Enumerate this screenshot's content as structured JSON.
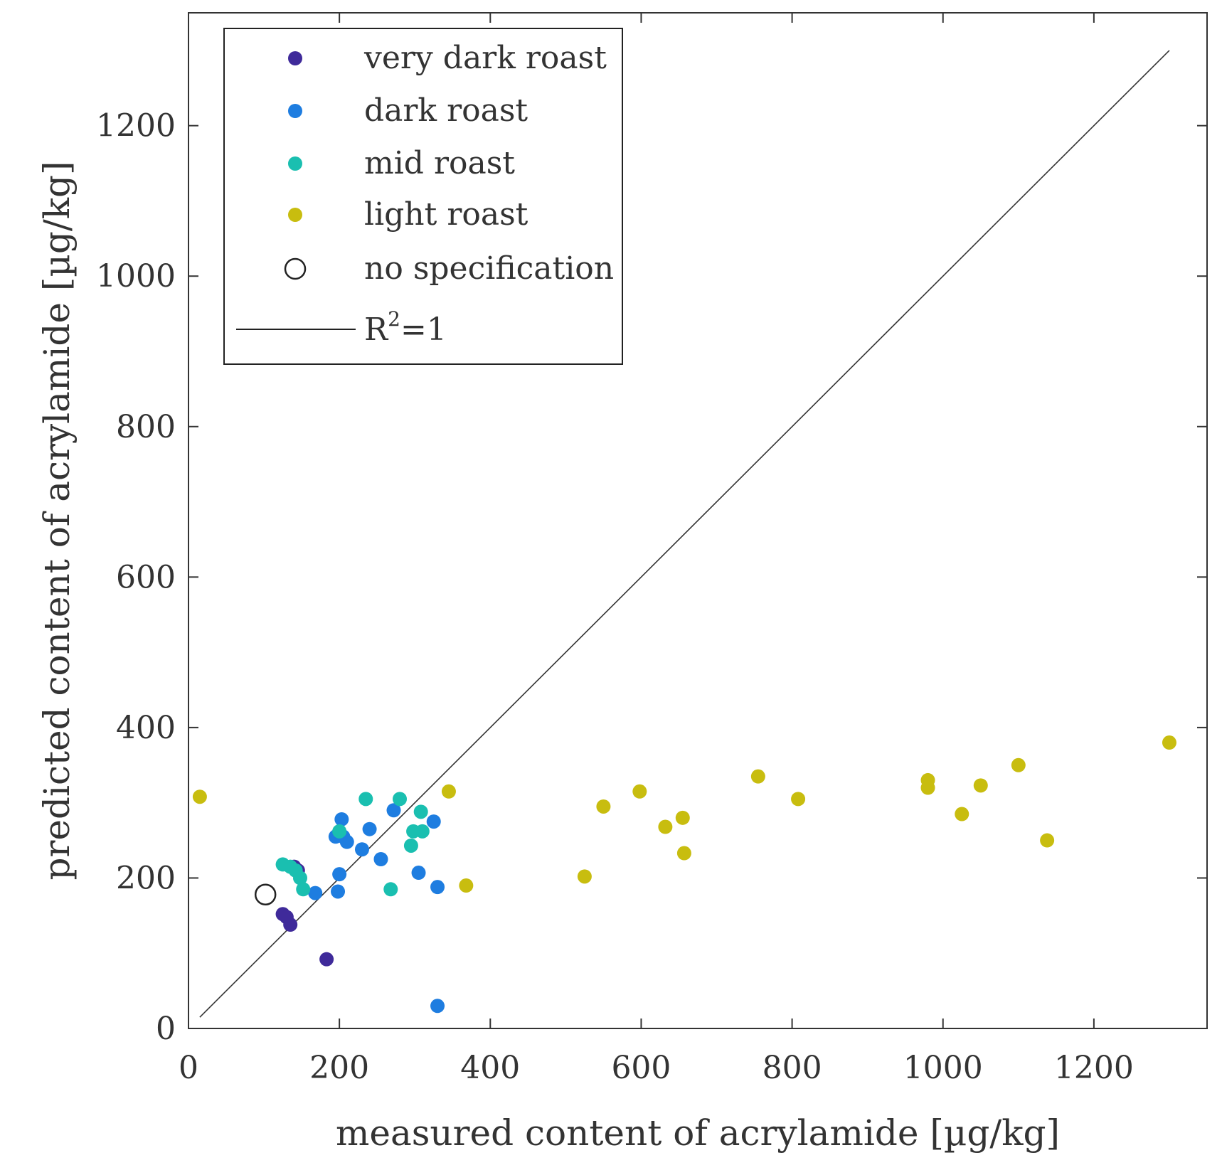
{
  "chart_data": {
    "type": "scatter",
    "title": "",
    "xlabel": "measured content of acrylamide [µg/kg]",
    "ylabel": "predicted content of acrylamide [µg/kg]",
    "xlim": [
      0,
      1350
    ],
    "ylim": [
      0,
      1350
    ],
    "xticks": [
      0,
      200,
      400,
      600,
      800,
      1000,
      1200
    ],
    "yticks": [
      0,
      200,
      400,
      600,
      800,
      1000,
      1200
    ],
    "grid": false,
    "legend_position": "top-left",
    "series": [
      {
        "name": "very dark roast",
        "color": "#3f2a9a",
        "marker": "filled-circle",
        "points": [
          [
            125,
            152
          ],
          [
            130,
            148
          ],
          [
            135,
            138
          ],
          [
            140,
            215
          ],
          [
            145,
            210
          ],
          [
            183,
            92
          ]
        ]
      },
      {
        "name": "dark roast",
        "color": "#1e7de0",
        "marker": "filled-circle",
        "points": [
          [
            168,
            180
          ],
          [
            195,
            255
          ],
          [
            198,
            182
          ],
          [
            200,
            205
          ],
          [
            203,
            278
          ],
          [
            205,
            255
          ],
          [
            210,
            248
          ],
          [
            230,
            238
          ],
          [
            240,
            265
          ],
          [
            255,
            225
          ],
          [
            272,
            290
          ],
          [
            305,
            207
          ],
          [
            325,
            275
          ],
          [
            330,
            188
          ],
          [
            330,
            30
          ]
        ]
      },
      {
        "name": "mid roast",
        "color": "#1abfb0",
        "marker": "filled-circle",
        "points": [
          [
            125,
            218
          ],
          [
            135,
            215
          ],
          [
            142,
            210
          ],
          [
            148,
            200
          ],
          [
            152,
            185
          ],
          [
            200,
            262
          ],
          [
            235,
            305
          ],
          [
            268,
            185
          ],
          [
            280,
            305
          ],
          [
            295,
            243
          ],
          [
            298,
            262
          ],
          [
            308,
            288
          ],
          [
            310,
            262
          ]
        ]
      },
      {
        "name": "light roast",
        "color": "#c8bd0f",
        "marker": "filled-circle",
        "points": [
          [
            15,
            308
          ],
          [
            345,
            315
          ],
          [
            368,
            190
          ],
          [
            525,
            202
          ],
          [
            550,
            295
          ],
          [
            598,
            315
          ],
          [
            632,
            268
          ],
          [
            655,
            280
          ],
          [
            657,
            233
          ],
          [
            755,
            335
          ],
          [
            808,
            305
          ],
          [
            980,
            330
          ],
          [
            980,
            320
          ],
          [
            1025,
            285
          ],
          [
            1050,
            323
          ],
          [
            1100,
            350
          ],
          [
            1138,
            250
          ],
          [
            1300,
            380
          ]
        ]
      },
      {
        "name": "no specification",
        "color": "#222222",
        "marker": "open-circle",
        "points": [
          [
            102,
            178
          ]
        ]
      }
    ],
    "reference_line": {
      "name_base": "R",
      "name_sup": "2",
      "name_tail": "=1",
      "x": [
        15,
        1300
      ],
      "y": [
        15,
        1300
      ],
      "color": "#333333"
    }
  }
}
